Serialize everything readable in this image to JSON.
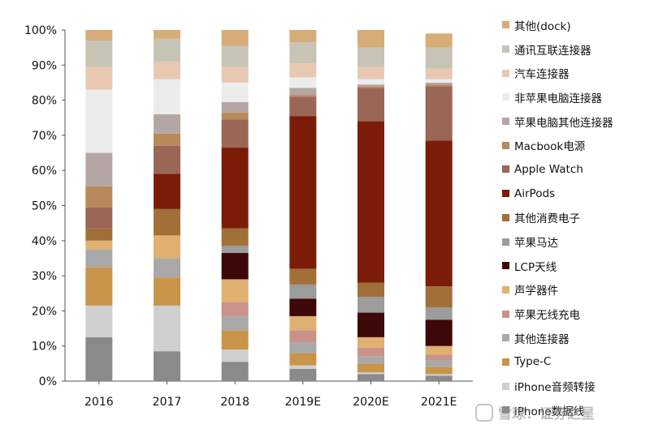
{
  "chart_data": {
    "type": "bar",
    "stacked": true,
    "title": "",
    "xlabel": "",
    "ylabel": "",
    "ylim": [
      0,
      100
    ],
    "yticks": [
      "0%",
      "10%",
      "20%",
      "30%",
      "40%",
      "50%",
      "60%",
      "70%",
      "80%",
      "90%",
      "100%"
    ],
    "categories": [
      "2016",
      "2017",
      "2018",
      "2019E",
      "2020E",
      "2021E"
    ],
    "legend_position": "right",
    "series": [
      {
        "name": "iPhone数据线",
        "color": "#8a8a8a",
        "values": [
          12.5,
          8.5,
          5.5,
          3.5,
          2.0,
          1.5
        ]
      },
      {
        "name": "iPhone音频转接",
        "color": "#cfcfcf",
        "values": [
          9.0,
          13.0,
          3.5,
          1.0,
          0.5,
          0.5
        ]
      },
      {
        "name": "Type-C",
        "color": "#c8944a",
        "values": [
          11.0,
          8.0,
          5.5,
          3.5,
          2.5,
          2.0
        ]
      },
      {
        "name": "其他连接器",
        "color": "#a8a8a8",
        "values": [
          5.0,
          5.5,
          4.0,
          3.0,
          2.0,
          2.0
        ]
      },
      {
        "name": "苹果无线充电",
        "color": "#c9928a",
        "values": [
          0,
          0,
          4.0,
          3.5,
          2.5,
          1.5
        ]
      },
      {
        "name": "声学器件",
        "color": "#e0b070",
        "values": [
          2.5,
          6.5,
          6.5,
          4.0,
          3.0,
          2.5
        ]
      },
      {
        "name": "LCP天线",
        "color": "#3d0808",
        "values": [
          0,
          0,
          7.5,
          5.0,
          7.0,
          7.5
        ]
      },
      {
        "name": "苹果马达",
        "color": "#9c9c9c",
        "values": [
          0,
          0,
          2.0,
          4.0,
          4.5,
          3.5
        ]
      },
      {
        "name": "其他消费电子",
        "color": "#a07038",
        "values": [
          3.5,
          7.5,
          5.0,
          4.5,
          4.0,
          6.0
        ]
      },
      {
        "name": "AirPods",
        "color": "#7a1c08",
        "values": [
          0,
          10.0,
          23.0,
          43.5,
          46.0,
          41.5
        ]
      },
      {
        "name": "Apple Watch",
        "color": "#9a6656",
        "values": [
          6.0,
          8.0,
          8.0,
          5.5,
          9.5,
          15.5
        ]
      },
      {
        "name": "Macbook电源",
        "color": "#b8895a",
        "values": [
          6.0,
          3.5,
          2.0,
          0.5,
          0.5,
          0.5
        ]
      },
      {
        "name": "苹果电脑其他连接器",
        "color": "#b5a6a6",
        "values": [
          9.5,
          5.5,
          3.0,
          2.0,
          0.5,
          0.5
        ]
      },
      {
        "name": "非苹果电脑连接器",
        "color": "#ececec",
        "values": [
          18.0,
          10.0,
          5.5,
          3.0,
          1.5,
          1.0
        ]
      },
      {
        "name": "汽车连接器",
        "color": "#e9c8b2",
        "values": [
          6.5,
          5.0,
          4.5,
          4.0,
          3.5,
          3.0
        ]
      },
      {
        "name": "通讯互联连接器",
        "color": "#c7c4b6",
        "values": [
          7.5,
          6.5,
          6.0,
          6.0,
          5.5,
          6.0
        ]
      },
      {
        "name": "其他(dock)",
        "color": "#d6ac78",
        "values": [
          3.0,
          2.5,
          4.5,
          3.5,
          5.0,
          4.0
        ]
      }
    ]
  },
  "watermark": {
    "text": "雪球：证券之星"
  }
}
